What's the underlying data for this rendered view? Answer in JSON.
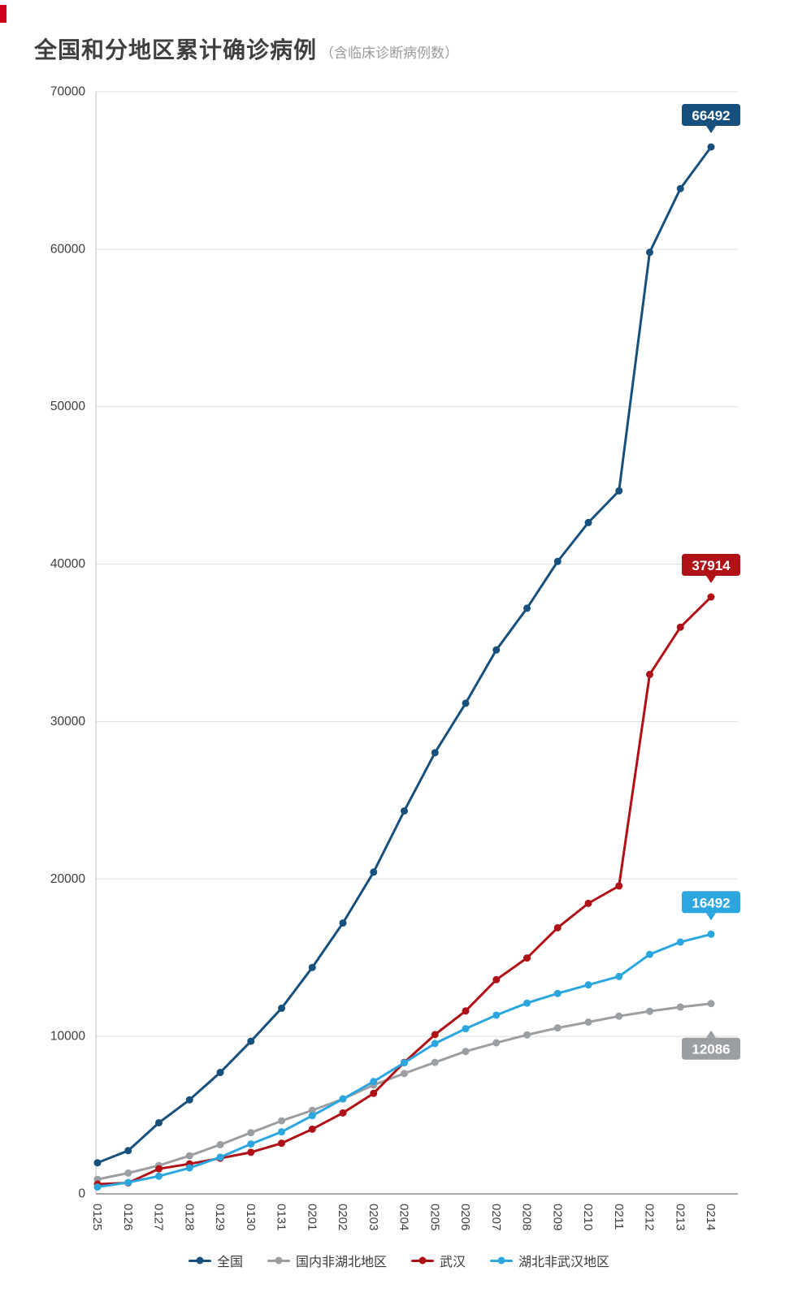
{
  "title": {
    "main": "全国和分地区累计确诊病例",
    "sub": "（含临床诊断病例数）"
  },
  "chart_data": {
    "type": "line",
    "title": "全国和分地区累计确诊病例",
    "subtitle": "（含临床诊断病例数）",
    "x": [
      "0125",
      "0126",
      "0127",
      "0128",
      "0129",
      "0130",
      "0131",
      "0201",
      "0202",
      "0203",
      "0204",
      "0205",
      "0206",
      "0207",
      "0208",
      "0209",
      "0210",
      "0211",
      "0212",
      "0213",
      "0214"
    ],
    "yticks": [
      "0",
      "10000",
      "20000",
      "30000",
      "40000",
      "50000",
      "60000",
      "70000"
    ],
    "ylim": [
      0,
      70000
    ],
    "grid": true,
    "legend_position": "bottom",
    "series": [
      {
        "id": "national",
        "name": "全国",
        "color": "#17507c",
        "values": [
          1975,
          2744,
          4515,
          5974,
          7711,
          9692,
          11791,
          14380,
          17205,
          20438,
          24324,
          28018,
          31161,
          34546,
          37198,
          40171,
          42638,
          44653,
          59804,
          63851,
          66492
        ],
        "end_label": "66492",
        "end_label_side": "above"
      },
      {
        "id": "non-hubei",
        "name": "国内非湖北地区",
        "color": "#9b9fa3",
        "values": [
          923,
          1321,
          1801,
          2420,
          3125,
          3886,
          4638,
          5306,
          6028,
          6916,
          7646,
          8353,
          9049,
          9593,
          10098,
          10540,
          10910,
          11287,
          11598,
          11865,
          12086
        ],
        "end_label": "12086",
        "end_label_side": "below"
      },
      {
        "id": "wuhan",
        "name": "武汉",
        "color": "#b01116",
        "values": [
          618,
          698,
          1590,
          1905,
          2261,
          2639,
          3215,
          4109,
          5142,
          6384,
          8351,
          10117,
          11618,
          13603,
          14982,
          16902,
          18454,
          19558,
          32994,
          35991,
          37914
        ],
        "end_label": "37914",
        "end_label_side": "above"
      },
      {
        "id": "hubei-non-wuhan",
        "name": "湖北非武汉地区",
        "color": "#2ba6de",
        "values": [
          434,
          725,
          1124,
          1649,
          2325,
          3167,
          3938,
          4965,
          6035,
          7138,
          8327,
          9548,
          10494,
          11350,
          12118,
          12729,
          13274,
          13808,
          15212,
          15995,
          16492
        ],
        "end_label": "16492",
        "end_label_side": "above"
      }
    ]
  }
}
